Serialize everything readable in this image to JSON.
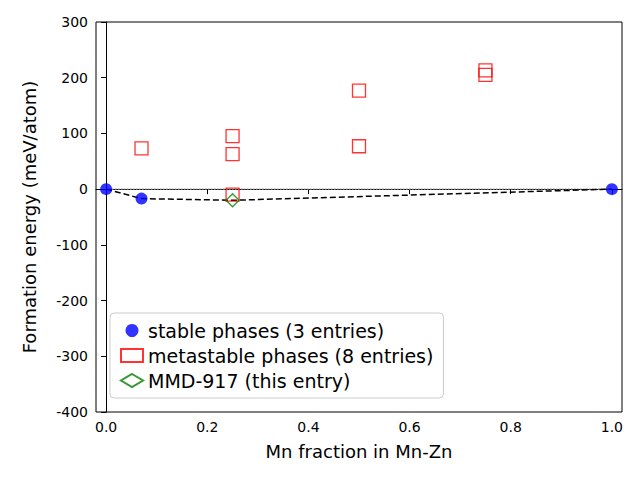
{
  "chart_data": {
    "type": "scatter",
    "x_label": "Mn fraction in Mn-Zn",
    "y_label": "Formation energy (meV/atom)",
    "xlim": [
      -0.02,
      1.02
    ],
    "xticks": [
      {
        "value": 0,
        "label": "0.0"
      },
      {
        "value": 0.2,
        "label": "0.2"
      },
      {
        "value": 0.4,
        "label": "0.4"
      },
      {
        "value": 0.6,
        "label": "0.6"
      },
      {
        "value": 0.8,
        "label": "0.8"
      },
      {
        "value": 1,
        "label": "1.0"
      }
    ],
    "ylim": [
      -400,
      300
    ],
    "yticks": [
      -400,
      -300,
      -200,
      -100,
      0,
      100,
      200,
      300
    ],
    "grid": false,
    "legend": "lower left",
    "series": [
      {
        "name": "stable phases (3 entries)",
        "color": "blue",
        "marker": "circle",
        "x": [
          0,
          0.07,
          1
        ],
        "values": [
          0,
          -17,
          0
        ]
      },
      {
        "name": "metastable phases (8 entries)",
        "color": "red",
        "marker": "square-open",
        "x": [
          0.07,
          0.25,
          0.25,
          0.25,
          0.5,
          0.5,
          0.75,
          0.75
        ],
        "values": [
          73,
          95,
          63,
          -10,
          177,
          77,
          213,
          205
        ]
      },
      {
        "name": "MMD-917 (this entry)",
        "color": "green",
        "marker": "diamond-open",
        "x": [
          0.25
        ],
        "values": [
          -20
        ]
      }
    ],
    "hull": {
      "x": [
        0,
        0.07,
        0.25,
        1
      ],
      "values": [
        0,
        -17,
        -20,
        0
      ],
      "color": "black",
      "line_style": "dashed"
    },
    "reference_line": {
      "x": [
        0,
        1
      ],
      "values": [
        0,
        0
      ],
      "color": "gray",
      "line_style": "dotted"
    }
  }
}
